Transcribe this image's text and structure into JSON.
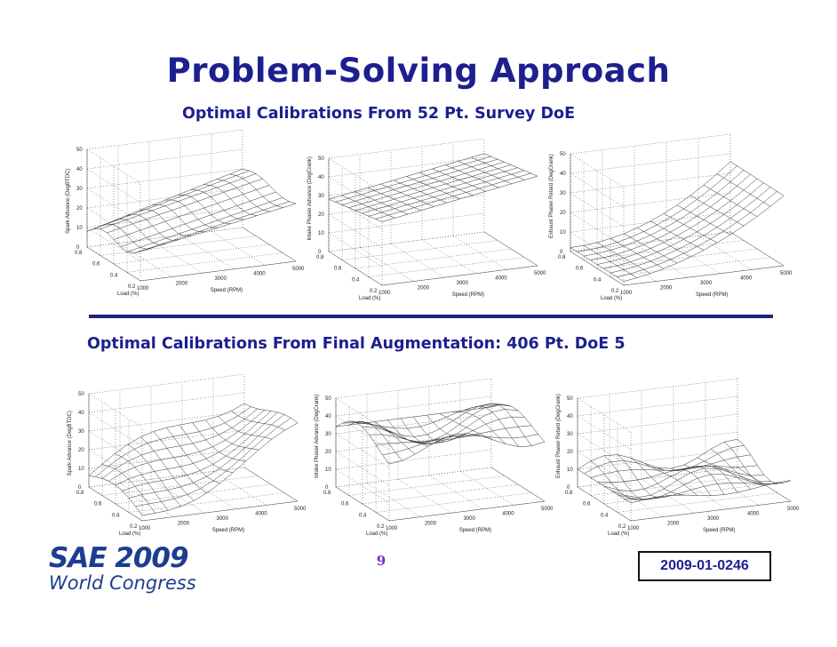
{
  "slide": {
    "title": "Problem-Solving Approach",
    "subtitle_top": "Optimal Calibrations From 52 Pt. Survey DoE",
    "subtitle_bottom": "Optimal Calibrations From Final Augmentation: 406 Pt. DoE 5",
    "page_number": "9",
    "paper_code": "2009-01-0246",
    "logo_line1": "SAE 2009",
    "logo_line2": "World Congress"
  },
  "colors": {
    "title": "#1d1f8f",
    "divider": "#20237a",
    "page_number": "#6c31c9",
    "logo": "#1d3d8f"
  },
  "plots": {
    "z_ticks": [
      "0",
      "10",
      "20",
      "30",
      "40",
      "50"
    ],
    "load_ticks": [
      "0.8",
      "0.6",
      "0.4",
      "0.2"
    ],
    "speed_ticks": [
      "1000",
      "2000",
      "3000",
      "4000",
      "5000"
    ],
    "load_label": "Load (%)",
    "speed_label": "Speed (RPM)",
    "spark_label": "Spark Advance (DegBTDC)",
    "intake_label": "Intake Phaser Advance (DegCrank)",
    "exhaust_label": "Exhaust Phaser Retard (DegCrank)"
  }
}
